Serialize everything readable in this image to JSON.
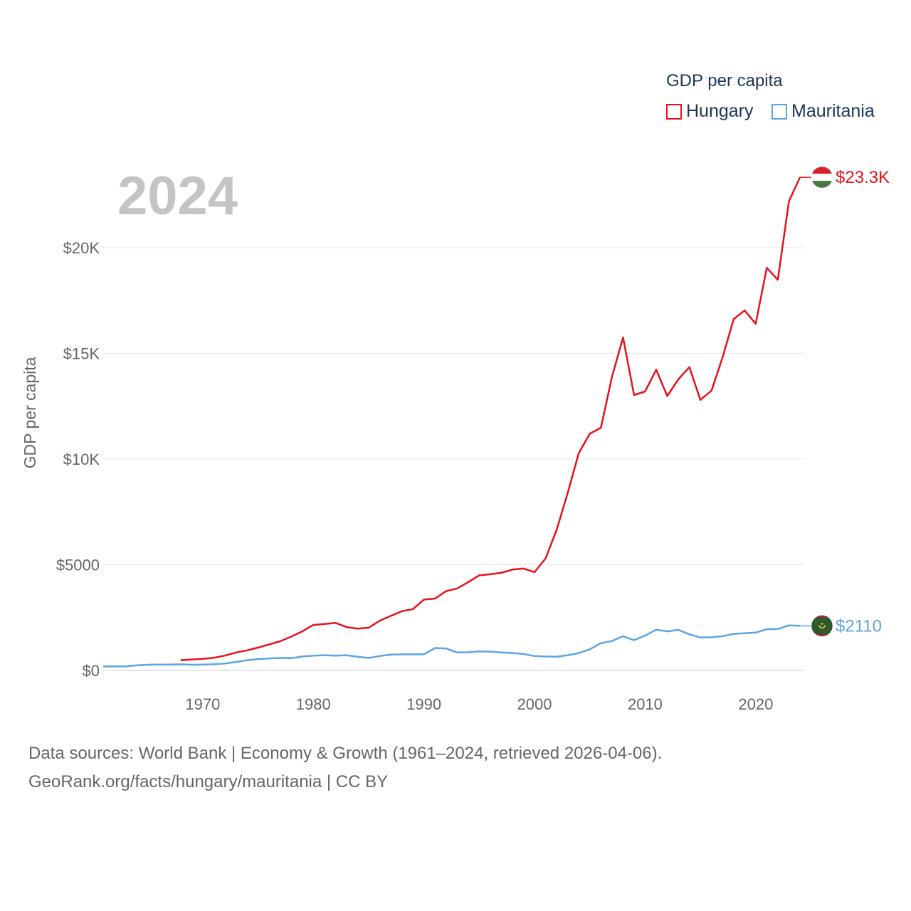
{
  "chart_data": {
    "type": "line",
    "title": "GDP per capita",
    "year_label": "2024",
    "ylabel": "GDP per capita",
    "xlabel": "",
    "xlim": [
      1961,
      2024
    ],
    "ylim": [
      0,
      25000
    ],
    "grid": true,
    "legend_position": "top-right",
    "y_ticks": [
      {
        "value": 0,
        "label": "$0"
      },
      {
        "value": 5000,
        "label": "$5000"
      },
      {
        "value": 10000,
        "label": "$10K"
      },
      {
        "value": 15000,
        "label": "$15K"
      },
      {
        "value": 20000,
        "label": "$20K"
      }
    ],
    "x_ticks": [
      {
        "value": 1970,
        "label": "1970"
      },
      {
        "value": 1980,
        "label": "1980"
      },
      {
        "value": 1990,
        "label": "1990"
      },
      {
        "value": 2000,
        "label": "2000"
      },
      {
        "value": 2010,
        "label": "2010"
      },
      {
        "value": 2020,
        "label": "2020"
      }
    ],
    "series": [
      {
        "name": "Hungary",
        "color": "#e8111b",
        "end_label": "$23.3K",
        "flag": "hungary-flag",
        "points": [
          [
            1968,
            480
          ],
          [
            1969,
            520
          ],
          [
            1970,
            550
          ],
          [
            1971,
            600
          ],
          [
            1972,
            700
          ],
          [
            1973,
            850
          ],
          [
            1974,
            950
          ],
          [
            1975,
            1080
          ],
          [
            1976,
            1230
          ],
          [
            1977,
            1380
          ],
          [
            1978,
            1600
          ],
          [
            1979,
            1850
          ],
          [
            1980,
            2150
          ],
          [
            1981,
            2200
          ],
          [
            1982,
            2250
          ],
          [
            1983,
            2050
          ],
          [
            1984,
            1980
          ],
          [
            1985,
            2020
          ],
          [
            1986,
            2350
          ],
          [
            1987,
            2580
          ],
          [
            1988,
            2800
          ],
          [
            1989,
            2900
          ],
          [
            1990,
            3350
          ],
          [
            1991,
            3400
          ],
          [
            1992,
            3750
          ],
          [
            1993,
            3880
          ],
          [
            1994,
            4180
          ],
          [
            1995,
            4500
          ],
          [
            1996,
            4550
          ],
          [
            1997,
            4620
          ],
          [
            1998,
            4770
          ],
          [
            1999,
            4820
          ],
          [
            2000,
            4650
          ],
          [
            2001,
            5300
          ],
          [
            2002,
            6650
          ],
          [
            2003,
            8400
          ],
          [
            2004,
            10280
          ],
          [
            2005,
            11200
          ],
          [
            2006,
            11480
          ],
          [
            2007,
            13880
          ],
          [
            2008,
            15750
          ],
          [
            2009,
            13030
          ],
          [
            2010,
            13200
          ],
          [
            2011,
            14230
          ],
          [
            2012,
            12980
          ],
          [
            2013,
            13770
          ],
          [
            2014,
            14350
          ],
          [
            2015,
            12800
          ],
          [
            2016,
            13240
          ],
          [
            2017,
            14800
          ],
          [
            2018,
            16620
          ],
          [
            2019,
            17030
          ],
          [
            2020,
            16400
          ],
          [
            2021,
            19050
          ],
          [
            2022,
            18480
          ],
          [
            2023,
            22200
          ],
          [
            2024,
            23330
          ]
        ]
      },
      {
        "name": "Mauritania",
        "color": "#5aa5e6",
        "end_label": "$2110",
        "flag": "mauritania-flag",
        "points": [
          [
            1961,
            190
          ],
          [
            1962,
            195
          ],
          [
            1963,
            190
          ],
          [
            1964,
            240
          ],
          [
            1965,
            270
          ],
          [
            1966,
            280
          ],
          [
            1967,
            280
          ],
          [
            1968,
            290
          ],
          [
            1969,
            270
          ],
          [
            1970,
            280
          ],
          [
            1971,
            290
          ],
          [
            1972,
            330
          ],
          [
            1973,
            400
          ],
          [
            1974,
            480
          ],
          [
            1975,
            540
          ],
          [
            1976,
            570
          ],
          [
            1977,
            590
          ],
          [
            1978,
            580
          ],
          [
            1979,
            660
          ],
          [
            1980,
            700
          ],
          [
            1981,
            720
          ],
          [
            1982,
            700
          ],
          [
            1983,
            720
          ],
          [
            1984,
            650
          ],
          [
            1985,
            590
          ],
          [
            1986,
            680
          ],
          [
            1987,
            750
          ],
          [
            1988,
            760
          ],
          [
            1989,
            760
          ],
          [
            1990,
            770
          ],
          [
            1991,
            1060
          ],
          [
            1992,
            1040
          ],
          [
            1993,
            850
          ],
          [
            1994,
            860
          ],
          [
            1995,
            900
          ],
          [
            1996,
            890
          ],
          [
            1997,
            850
          ],
          [
            1998,
            820
          ],
          [
            1999,
            780
          ],
          [
            2000,
            680
          ],
          [
            2001,
            660
          ],
          [
            2002,
            650
          ],
          [
            2003,
            720
          ],
          [
            2004,
            820
          ],
          [
            2005,
            1000
          ],
          [
            2006,
            1290
          ],
          [
            2007,
            1390
          ],
          [
            2008,
            1620
          ],
          [
            2009,
            1430
          ],
          [
            2010,
            1650
          ],
          [
            2011,
            1930
          ],
          [
            2012,
            1850
          ],
          [
            2013,
            1920
          ],
          [
            2014,
            1710
          ],
          [
            2015,
            1560
          ],
          [
            2016,
            1570
          ],
          [
            2017,
            1620
          ],
          [
            2018,
            1730
          ],
          [
            2019,
            1760
          ],
          [
            2020,
            1790
          ],
          [
            2021,
            1950
          ],
          [
            2022,
            1960
          ],
          [
            2023,
            2130
          ],
          [
            2024,
            2110
          ]
        ]
      }
    ]
  },
  "legend": {
    "title": "GDP per capita",
    "items": [
      {
        "label": "Hungary",
        "color": "#e8111b"
      },
      {
        "label": "Mauritania",
        "color": "#5aa5e6"
      }
    ]
  },
  "footer": {
    "line1": "Data sources: World Bank | Economy & Growth (1961–2024, retrieved 2026-04-06).",
    "line2": "GeoRank.org/facts/hungary/mauritania | CC BY"
  }
}
